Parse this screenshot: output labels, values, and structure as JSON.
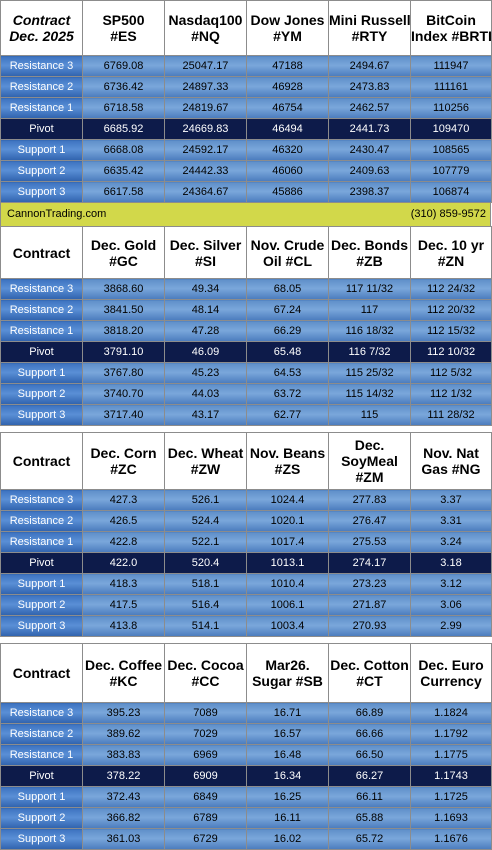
{
  "row_labels": [
    "Resistance 3",
    "Resistance 2",
    "Resistance 1",
    "Pivot",
    "Support 1",
    "Support 2",
    "Support 3"
  ],
  "banner": {
    "site": "CannonTrading.com",
    "phone": "(310) 859-9572"
  },
  "sections": [
    {
      "header_label": [
        "Contract",
        "Dec. 2025"
      ],
      "headers": [
        [
          "SP500",
          "#ES"
        ],
        [
          "Nasdaq100",
          "#NQ"
        ],
        [
          "Dow Jones",
          "#YM"
        ],
        [
          "Mini Russell",
          "#RTY"
        ],
        [
          "BitCoin",
          "Index #BRTI"
        ]
      ],
      "rows": [
        [
          "6769.08",
          "25047.17",
          "47188",
          "2494.67",
          "111947"
        ],
        [
          "6736.42",
          "24897.33",
          "46928",
          "2473.83",
          "111161"
        ],
        [
          "6718.58",
          "24819.67",
          "46754",
          "2462.57",
          "110256"
        ],
        [
          "6685.92",
          "24669.83",
          "46494",
          "2441.73",
          "109470"
        ],
        [
          "6668.08",
          "24592.17",
          "46320",
          "2430.47",
          "108565"
        ],
        [
          "6635.42",
          "24442.33",
          "46060",
          "2409.63",
          "107779"
        ],
        [
          "6617.58",
          "24364.67",
          "45886",
          "2398.37",
          "106874"
        ]
      ]
    },
    {
      "header_label": [
        "Contract"
      ],
      "headers": [
        [
          "Dec. Gold",
          "#GC"
        ],
        [
          "Dec. Silver",
          "#SI"
        ],
        [
          "Nov. Crude",
          "Oil #CL"
        ],
        [
          "Dec. Bonds",
          "#ZB"
        ],
        [
          "Dec. 10 yr",
          "#ZN"
        ]
      ],
      "rows": [
        [
          "3868.60",
          "49.34",
          "68.05",
          "117 11/32",
          "112 24/32"
        ],
        [
          "3841.50",
          "48.14",
          "67.24",
          "117",
          "112 20/32"
        ],
        [
          "3818.20",
          "47.28",
          "66.29",
          "116 18/32",
          "112 15/32"
        ],
        [
          "3791.10",
          "46.09",
          "65.48",
          "116  7/32",
          "112 10/32"
        ],
        [
          "3767.80",
          "45.23",
          "64.53",
          "115 25/32",
          "112  5/32"
        ],
        [
          "3740.70",
          "44.03",
          "63.72",
          "115 14/32",
          "112  1/32"
        ],
        [
          "3717.40",
          "43.17",
          "62.77",
          "115",
          "111 28/32"
        ]
      ]
    },
    {
      "header_label": [
        "Contract"
      ],
      "headers": [
        [
          "Dec. Corn",
          "#ZC"
        ],
        [
          "Dec.  Wheat",
          "#ZW"
        ],
        [
          "Nov. Beans",
          "#ZS"
        ],
        [
          "Dec.",
          "SoyMeal",
          "#ZM"
        ],
        [
          "Nov. Nat",
          "Gas #NG"
        ]
      ],
      "rows": [
        [
          "427.3",
          "526.1",
          "1024.4",
          "277.83",
          "3.37"
        ],
        [
          "426.5",
          "524.4",
          "1020.1",
          "276.47",
          "3.31"
        ],
        [
          "422.8",
          "522.1",
          "1017.4",
          "275.53",
          "3.24"
        ],
        [
          "422.0",
          "520.4",
          "1013.1",
          "274.17",
          "3.18"
        ],
        [
          "418.3",
          "518.1",
          "1010.4",
          "273.23",
          "3.12"
        ],
        [
          "417.5",
          "516.4",
          "1006.1",
          "271.87",
          "3.06"
        ],
        [
          "413.8",
          "514.1",
          "1003.4",
          "270.93",
          "2.99"
        ]
      ]
    },
    {
      "header_label": [
        "Contract"
      ],
      "headers": [
        [
          "Dec. Coffee",
          "#KC"
        ],
        [
          "Dec. Cocoa",
          "#CC"
        ],
        [
          "Mar26.",
          "Sugar #SB"
        ],
        [
          "Dec. Cotton",
          "#CT"
        ],
        [
          "Dec. Euro",
          "Currency"
        ]
      ],
      "rows": [
        [
          "395.23",
          "7089",
          "16.71",
          "66.89",
          "1.1824"
        ],
        [
          "389.62",
          "7029",
          "16.57",
          "66.66",
          "1.1792"
        ],
        [
          "383.83",
          "6969",
          "16.48",
          "66.50",
          "1.1775"
        ],
        [
          "378.22",
          "6909",
          "16.34",
          "66.27",
          "1.1743"
        ],
        [
          "372.43",
          "6849",
          "16.25",
          "66.11",
          "1.1725"
        ],
        [
          "366.82",
          "6789",
          "16.11",
          "65.88",
          "1.1693"
        ],
        [
          "361.03",
          "6729",
          "16.02",
          "65.72",
          "1.1676"
        ]
      ]
    }
  ]
}
